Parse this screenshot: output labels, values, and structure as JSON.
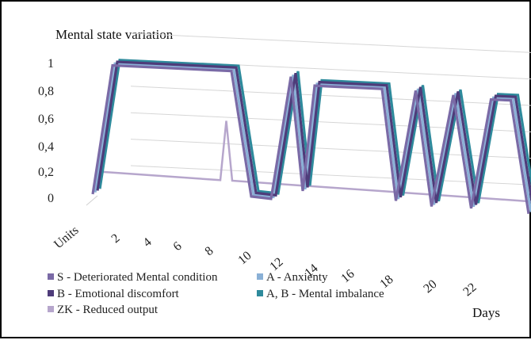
{
  "chart_data": {
    "type": "line",
    "title": "Mental state variation",
    "xlabel": "Days",
    "y_ticks": [
      "1",
      "0,8",
      "0,6",
      "0,4",
      "0,2",
      "0"
    ],
    "ylim": [
      0,
      1
    ],
    "x_ticks": [
      "Units",
      "2",
      "4",
      "6",
      "8",
      "10",
      "12",
      "14",
      "16",
      "18",
      "20",
      "22"
    ],
    "xlim": [
      0,
      22
    ],
    "grid": true,
    "legend_position": "bottom",
    "series": [
      {
        "name": "S - Deteriorated Mental condition",
        "color": "#7a6aa6",
        "x": [
          0,
          1,
          7,
          8,
          9,
          10,
          10.6,
          11.2,
          12,
          14.6,
          15.3,
          16.3,
          17.1,
          18.2,
          19.1,
          20.1,
          21.1,
          22
        ],
        "y": [
          0,
          0.98,
          0.98,
          0.04,
          0.03,
          0.96,
          0.1,
          0.9,
          0.9,
          0.9,
          0.06,
          0.9,
          0.03,
          0.88,
          0.03,
          0.86,
          0.86,
          0.01
        ]
      },
      {
        "name": "A - Anxienty",
        "color": "#8ab0d6",
        "x": [
          0,
          1,
          7,
          8,
          9,
          10,
          10.6,
          11.2,
          12,
          14.6,
          15.3,
          16.3,
          17.1,
          18.2,
          19.1,
          20.1,
          21.1,
          22
        ],
        "y": [
          0,
          0.98,
          0.98,
          0.04,
          0.03,
          0.96,
          0.1,
          0.9,
          0.9,
          0.9,
          0.06,
          0.9,
          0.03,
          0.88,
          0.03,
          0.86,
          0.86,
          0.01
        ]
      },
      {
        "name": "B - Emotional discomfort",
        "color": "#4e3c7a",
        "x": [
          0,
          1,
          7,
          8,
          9,
          10,
          10.6,
          11.2,
          12,
          14.6,
          15.3,
          16.3,
          17.1,
          18.2,
          19.1,
          20.1,
          21.1,
          22
        ],
        "y": [
          0,
          0.98,
          0.98,
          0.04,
          0.03,
          0.96,
          0.1,
          0.9,
          0.9,
          0.9,
          0.06,
          0.9,
          0.03,
          0.88,
          0.03,
          0.86,
          0.86,
          0.01
        ]
      },
      {
        "name": "A, B - Mental imbalance",
        "color": "#2e8a9c",
        "x": [
          0,
          1,
          7,
          8,
          9,
          10,
          10.6,
          11.2,
          12,
          14.6,
          15.3,
          16.3,
          17.1,
          18.2,
          19.1,
          20.1,
          21.1,
          22
        ],
        "y": [
          0,
          0.98,
          0.98,
          0.04,
          0.03,
          0.96,
          0.1,
          0.9,
          0.9,
          0.9,
          0.06,
          0.9,
          0.03,
          0.88,
          0.03,
          0.86,
          0.86,
          0.01
        ]
      },
      {
        "name": "ZK - Reduced output",
        "color": "#b6a6cc",
        "x": [
          0,
          6,
          6.3,
          6.6,
          22
        ],
        "y": [
          0.12,
          0.1,
          0.55,
          0.1,
          0.05
        ]
      }
    ]
  }
}
